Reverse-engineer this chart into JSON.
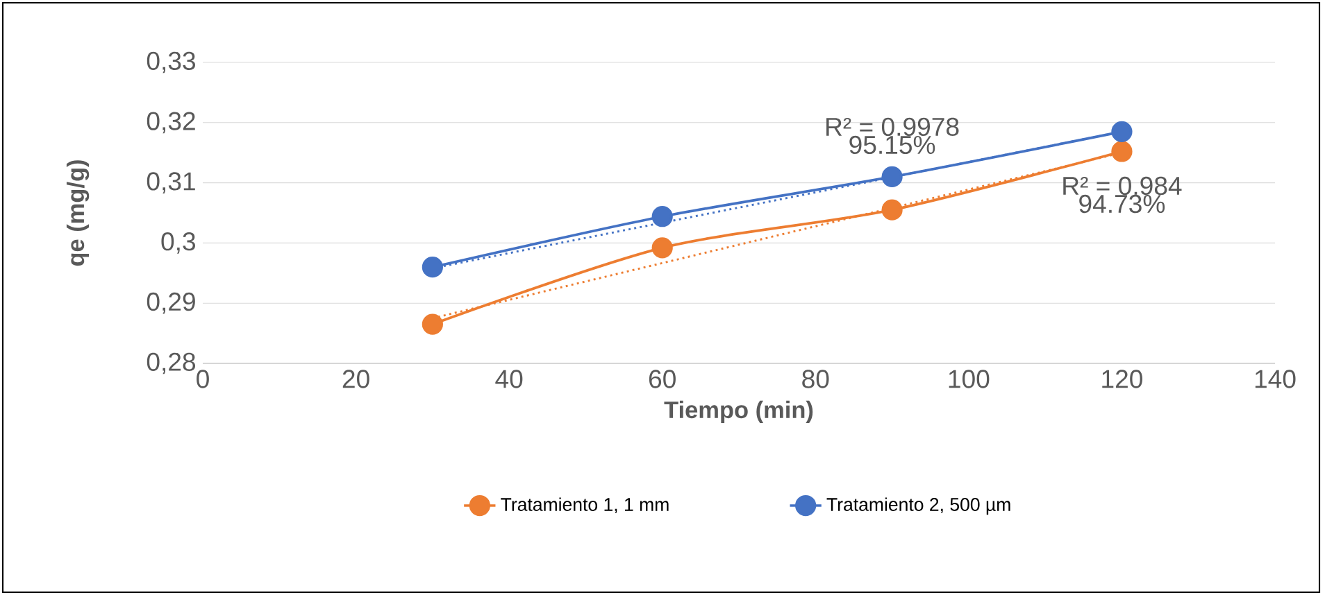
{
  "chart_data": {
    "type": "line",
    "xlabel": "Tiempo (min)",
    "ylabel": "qe (mg/g)",
    "xlim": [
      0,
      140
    ],
    "xticks": [
      0,
      20,
      40,
      60,
      80,
      100,
      120,
      140
    ],
    "ylim": [
      0.28,
      0.33
    ],
    "yticks": [
      {
        "value": 0.28,
        "label": "0,28"
      },
      {
        "value": 0.29,
        "label": "0,29"
      },
      {
        "value": 0.3,
        "label": "0,3"
      },
      {
        "value": 0.31,
        "label": "0,31"
      },
      {
        "value": 0.32,
        "label": "0,32"
      },
      {
        "value": 0.33,
        "label": "0,33"
      }
    ],
    "grid": "y",
    "legend": "bottom",
    "marker": "circle",
    "line_style": "solid",
    "series": [
      {
        "name": "Tratamiento 1, 1 mm",
        "color": "#ed7d31",
        "x": [
          30,
          60,
          90,
          120
        ],
        "values": [
          0.2865,
          0.2992,
          0.3055,
          0.3152
        ]
      },
      {
        "name": "Tratamiento 2,  500 µm",
        "color": "#4472c4",
        "x": [
          30,
          60,
          90,
          120
        ],
        "values": [
          0.296,
          0.3044,
          0.311,
          0.3185
        ]
      },
      {
        "color": "#ed7d31",
        "x": [
          30,
          120
        ],
        "values": [
          0.2875,
          0.315
        ],
        "marker": "none",
        "line_style": "dotted"
      },
      {
        "color": "#4472c4",
        "x": [
          30,
          120
        ],
        "values": [
          0.2958,
          0.3185
        ],
        "marker": "none",
        "line_style": "dotted"
      }
    ],
    "annotations": [
      "R² = 0.9978",
      "95.15%",
      "R² = 0.984",
      "94.73%"
    ]
  }
}
